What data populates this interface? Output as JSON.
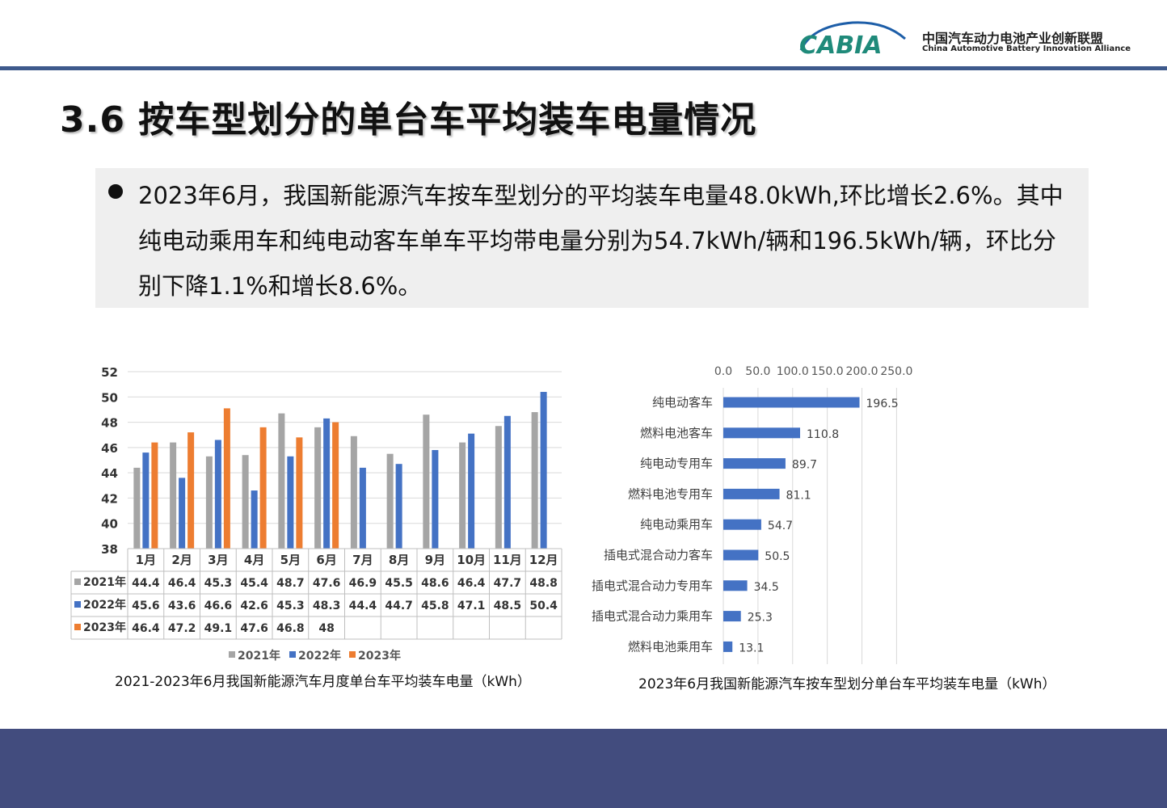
{
  "header": {
    "logo_text": "CABIA",
    "org_name_cn": "中国汽车动力电池产业创新联盟",
    "org_name_en": "China Automotive Battery Innovation Alliance"
  },
  "title": "3.6 按车型划分的单台车平均装车电量情况",
  "summary": {
    "text": "2023年6月，我国新能源汽车按车型划分的平均装车电量48.0kWh,环比增长2.6%。其中纯电动乘用车和纯电动客车单车平均带电量分别为54.7kWh/辆和196.5kWh/辆，环比分别下降1.1%和增长8.6%。"
  },
  "colors": {
    "s2021": "#a5a5a5",
    "s2022": "#4472c4",
    "s2023": "#ed7d31",
    "bar_right": "#4472c4",
    "header_line": "#3e5a8c",
    "footer": "#424c7e"
  },
  "chart_data": [
    {
      "type": "bar",
      "caption": "2021-2023年6月我国新能源汽车月度单台车平均装车电量（kWh）",
      "categories": [
        "1月",
        "2月",
        "3月",
        "4月",
        "5月",
        "6月",
        "7月",
        "8月",
        "9月",
        "10月",
        "11月",
        "12月"
      ],
      "series": [
        {
          "name": "2021年",
          "values": [
            44.4,
            46.4,
            45.3,
            45.4,
            48.7,
            47.6,
            46.9,
            45.5,
            48.6,
            46.4,
            47.7,
            48.8
          ],
          "color": "#a5a5a5"
        },
        {
          "name": "2022年",
          "values": [
            45.6,
            43.6,
            46.6,
            42.6,
            45.3,
            48.3,
            44.4,
            44.7,
            45.8,
            47.1,
            48.5,
            50.4
          ],
          "color": "#4472c4"
        },
        {
          "name": "2023年",
          "values": [
            46.4,
            47.2,
            49.1,
            47.6,
            46.8,
            48,
            null,
            null,
            null,
            null,
            null,
            null
          ],
          "color": "#ed7d31"
        }
      ],
      "ylim": [
        38,
        52
      ],
      "yticks": [
        38,
        40,
        42,
        44,
        46,
        48,
        50,
        52
      ],
      "grid": true,
      "legend": "bottom",
      "data_table": true
    },
    {
      "type": "bar",
      "orientation": "horizontal",
      "caption": "2023年6月我国新能源汽车按车型划分单台车平均装车电量（kWh）",
      "categories": [
        "纯电动客车",
        "燃料电池客车",
        "纯电动专用车",
        "燃料电池专用车",
        "纯电动乘用车",
        "插电式混合动力客车",
        "插电式混合动力专用车",
        "插电式混合动力乘用车",
        "燃料电池乘用车"
      ],
      "values": [
        196.5,
        110.8,
        89.7,
        81.1,
        54.7,
        50.5,
        34.5,
        25.3,
        13.1
      ],
      "xlim": [
        0,
        250
      ],
      "xticks": [
        "0.0",
        "50.0",
        "100.0",
        "150.0",
        "200.0",
        "250.0"
      ],
      "x_axis_position": "top",
      "grid": true,
      "color": "#4472c4"
    }
  ]
}
